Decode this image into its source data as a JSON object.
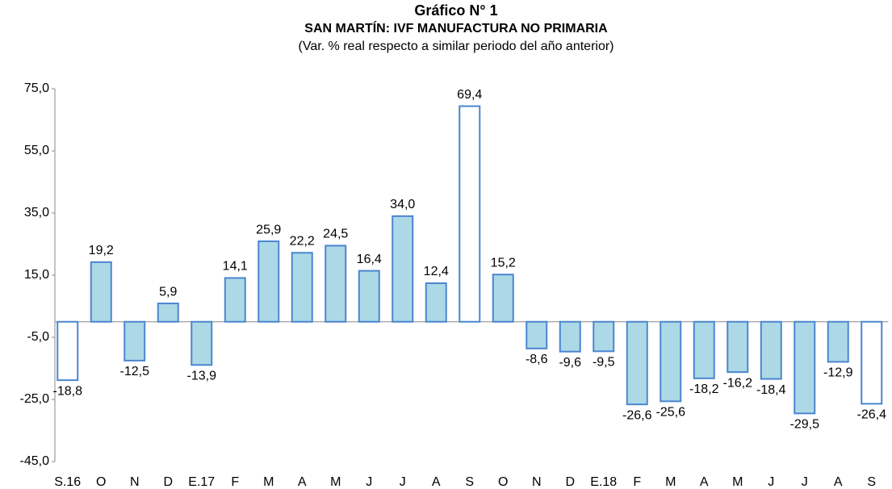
{
  "chart_data": {
    "type": "bar",
    "title": "Gráfico N° 1",
    "subtitle": "SAN MARTÍN: IVF MANUFACTURA NO PRIMARIA",
    "note": "(Var. % real respecto a similar periodo del año anterior)",
    "categories": [
      "S.16",
      "O",
      "N",
      "D",
      "E.17",
      "F",
      "M",
      "A",
      "M",
      "J",
      "J",
      "A",
      "S",
      "O",
      "N",
      "D",
      "E.18",
      "F",
      "M",
      "A",
      "M",
      "J",
      "J",
      "A",
      "S"
    ],
    "values": [
      -18.8,
      19.2,
      -12.5,
      5.9,
      -13.9,
      14.1,
      25.9,
      22.2,
      24.5,
      16.4,
      34.0,
      12.4,
      69.4,
      15.2,
      -8.6,
      -9.6,
      -9.5,
      -26.6,
      -25.6,
      -18.2,
      -16.2,
      -18.4,
      -29.5,
      -12.9,
      -26.4
    ],
    "value_labels": [
      "-18,8",
      "19,2",
      "-12,5",
      "5,9",
      "-13,9",
      "14,1",
      "25,9",
      "22,2",
      "24,5",
      "16,4",
      "34,0",
      "12,4",
      "69,4",
      "15,2",
      "-8,6",
      "-9,6",
      "-9,5",
      "-26,6",
      "-25,6",
      "-18,2",
      "-16,2",
      "-18,4",
      "-29,5",
      "-12,9",
      "-26,4"
    ],
    "colors": [
      "#ffffff",
      "#add8e6",
      "#add8e6",
      "#add8e6",
      "#add8e6",
      "#add8e6",
      "#add8e6",
      "#add8e6",
      "#add8e6",
      "#add8e6",
      "#add8e6",
      "#add8e6",
      "#ffffff",
      "#add8e6",
      "#add8e6",
      "#add8e6",
      "#add8e6",
      "#add8e6",
      "#add8e6",
      "#add8e6",
      "#add8e6",
      "#add8e6",
      "#add8e6",
      "#add8e6",
      "#ffffff"
    ],
    "edge_color": "#4a86d0",
    "ylim": [
      -45,
      75
    ],
    "yticks": [
      {
        "value": -45,
        "label": "-45,0"
      },
      {
        "value": -25,
        "label": "-25,0"
      },
      {
        "value": -5,
        "label": "-5,0"
      },
      {
        "value": 15,
        "label": "15,0"
      },
      {
        "value": 35,
        "label": "35,0"
      },
      {
        "value": 55,
        "label": "55,0"
      },
      {
        "value": 75,
        "label": "75,0"
      }
    ],
    "grid": false
  }
}
